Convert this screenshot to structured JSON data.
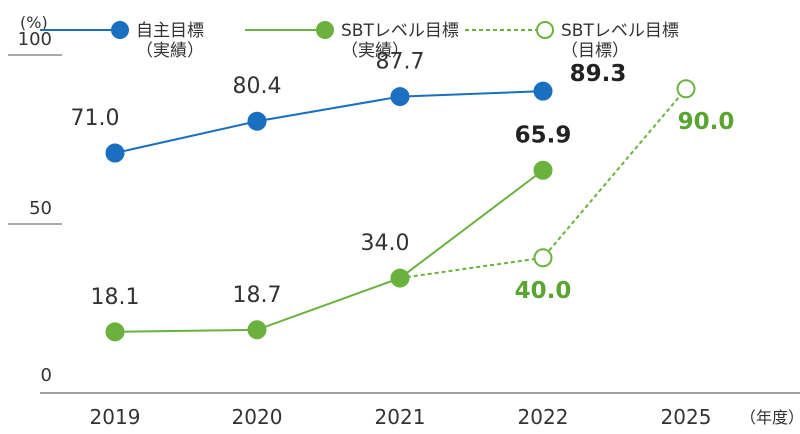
{
  "chart_data": {
    "type": "line",
    "y_unit": "(%)",
    "x_unit": "（年度）",
    "ylim": [
      0,
      100
    ],
    "yticks": [
      "0",
      "50",
      "100"
    ],
    "categories": [
      "2019",
      "2020",
      "2021",
      "2022",
      "2025"
    ],
    "series": [
      {
        "name": "自主目標\n（実績）",
        "style": "solid",
        "marker": "filled",
        "color": "#1a6fc0",
        "points": [
          {
            "x": "2019",
            "y": 71.0,
            "label": "71.0"
          },
          {
            "x": "2020",
            "y": 80.4,
            "label": "80.4"
          },
          {
            "x": "2021",
            "y": 87.7,
            "label": "87.7"
          },
          {
            "x": "2022",
            "y": 89.3,
            "label": "89.3"
          }
        ]
      },
      {
        "name": "SBTレベル目標\n（実績）",
        "style": "solid",
        "marker": "filled",
        "color": "#6ab23d",
        "points": [
          {
            "x": "2019",
            "y": 18.1,
            "label": "18.1"
          },
          {
            "x": "2020",
            "y": 18.7,
            "label": "18.7"
          },
          {
            "x": "2021",
            "y": 34.0,
            "label": "34.0"
          },
          {
            "x": "2022",
            "y": 65.9,
            "label": "65.9"
          }
        ]
      },
      {
        "name": "SBTレベル目標\n（目標）",
        "style": "dashed",
        "marker": "hollow",
        "color": "#6ab23d",
        "points": [
          {
            "x": "2021",
            "y": 34.0,
            "label": ""
          },
          {
            "x": "2022",
            "y": 40.0,
            "label": "40.0"
          },
          {
            "x": "2025",
            "y": 90.0,
            "label": "90.0"
          }
        ]
      }
    ],
    "grid": false,
    "legend_position": "top"
  }
}
